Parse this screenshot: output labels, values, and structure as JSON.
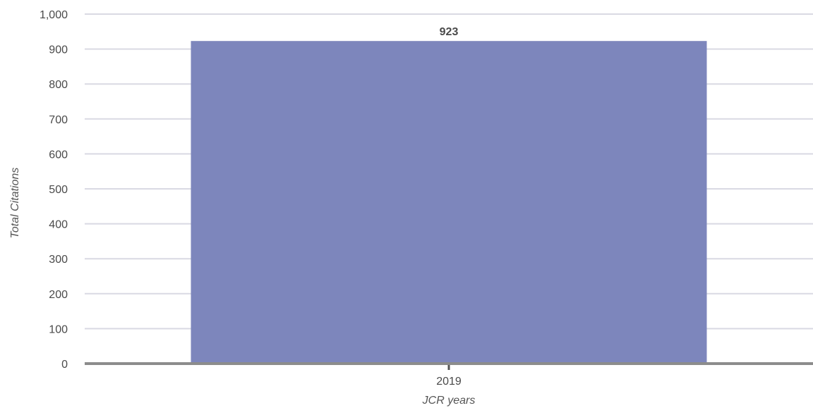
{
  "chart_data": {
    "type": "bar",
    "categories": [
      "2019"
    ],
    "values": [
      923
    ],
    "data_labels": [
      "923"
    ],
    "title": "",
    "xlabel": "JCR years",
    "ylabel": "Total Citations",
    "ylim": [
      0,
      1000
    ],
    "yticks": [
      0,
      100,
      200,
      300,
      400,
      500,
      600,
      700,
      800,
      900,
      1000
    ],
    "ytick_labels": [
      "0",
      "100",
      "200",
      "300",
      "400",
      "500",
      "600",
      "700",
      "800",
      "900",
      "1,000"
    ],
    "grid": true,
    "legend": "none",
    "bar_color": "#7d86bc",
    "grid_color": "#d9d9e3",
    "axis_color": "#8c8c8c",
    "text_color": "#4a4a4a"
  }
}
